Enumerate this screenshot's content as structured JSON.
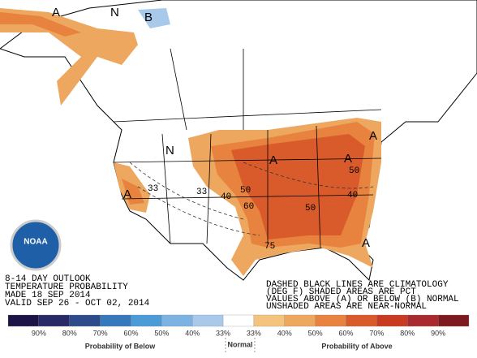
{
  "map": {
    "labels": [
      "A",
      "N",
      "B",
      "A",
      "33",
      "N",
      "33",
      "40",
      "50",
      "60",
      "A",
      "50",
      "40",
      "50",
      "A",
      "A",
      "A",
      "75"
    ],
    "logo": "NOAA",
    "outlook": [
      "8-14 DAY OUTLOOK",
      "TEMPERATURE PROBABILITY",
      "MADE   18 SEP 2014",
      "VALID   SEP 26 - OCT 02, 2014"
    ],
    "note": [
      "DASHED BLACK LINES ARE CLIMATOLOGY",
      "(DEG F) SHADED AREAS ARE PCT",
      "VALUES ABOVE (A) OR BELOW (B) NORMAL",
      "UNSHADED AREAS ARE NEAR-NORMAL"
    ]
  },
  "legend": {
    "colors": [
      "#1c1446",
      "#272a66",
      "#2d4b8a",
      "#3578bb",
      "#4b9bd8",
      "#7db3e3",
      "#a9c9ea",
      "#ffffff",
      "#f4c47c",
      "#eea75f",
      "#e8823f",
      "#d95b2b",
      "#c93a22",
      "#a92a2e",
      "#7d1a1f"
    ],
    "labels": [
      "90%",
      "80%",
      "70%",
      "60%",
      "50%",
      "40%",
      "33%",
      "33%",
      "40%",
      "50%",
      "60%",
      "70%",
      "80%",
      "90%"
    ],
    "below": "Probability of Below",
    "normal": "Normal",
    "above": "Probability of Above"
  }
}
